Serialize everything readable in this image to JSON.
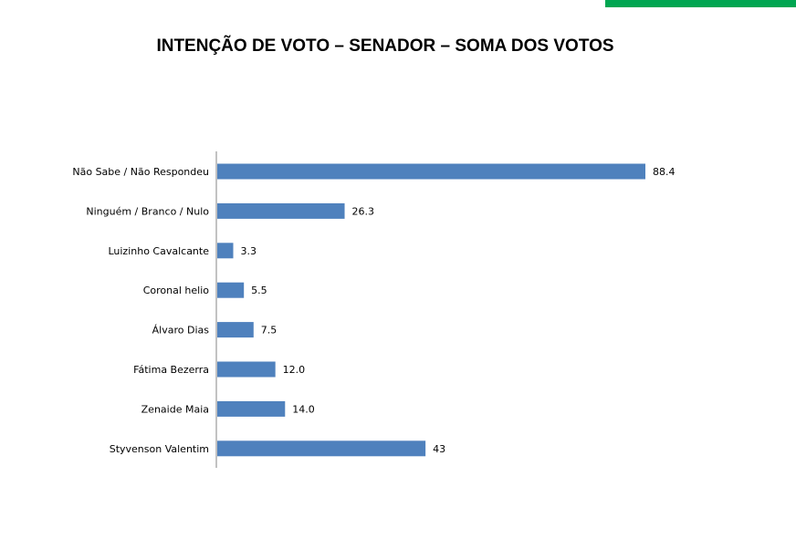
{
  "colors": {
    "accent": "#00A651",
    "bar": "#4F81BD",
    "axis": "#868686"
  },
  "chart_data": {
    "type": "bar",
    "orientation": "horizontal",
    "title": "INTENÇÃO DE VOTO – SENADOR – SOMA DOS VOTOS",
    "categories": [
      "Não Sabe / Não Respondeu",
      "Ninguém / Branco / Nulo",
      "Luizinho Cavalcante",
      "Coronal helio",
      "Álvaro Dias",
      "Fátima Bezerra",
      "Zenaide Maia",
      "Styvenson Valentim"
    ],
    "values": [
      88.4,
      26.3,
      3.3,
      5.5,
      7.5,
      12.0,
      14.0,
      43
    ],
    "data_labels": [
      "88.4",
      "26.3",
      "3.3",
      "5.5",
      "7.5",
      "12.0",
      "14.0",
      "43"
    ],
    "xlim": [
      0,
      100
    ],
    "grid": false,
    "legend": "none"
  }
}
